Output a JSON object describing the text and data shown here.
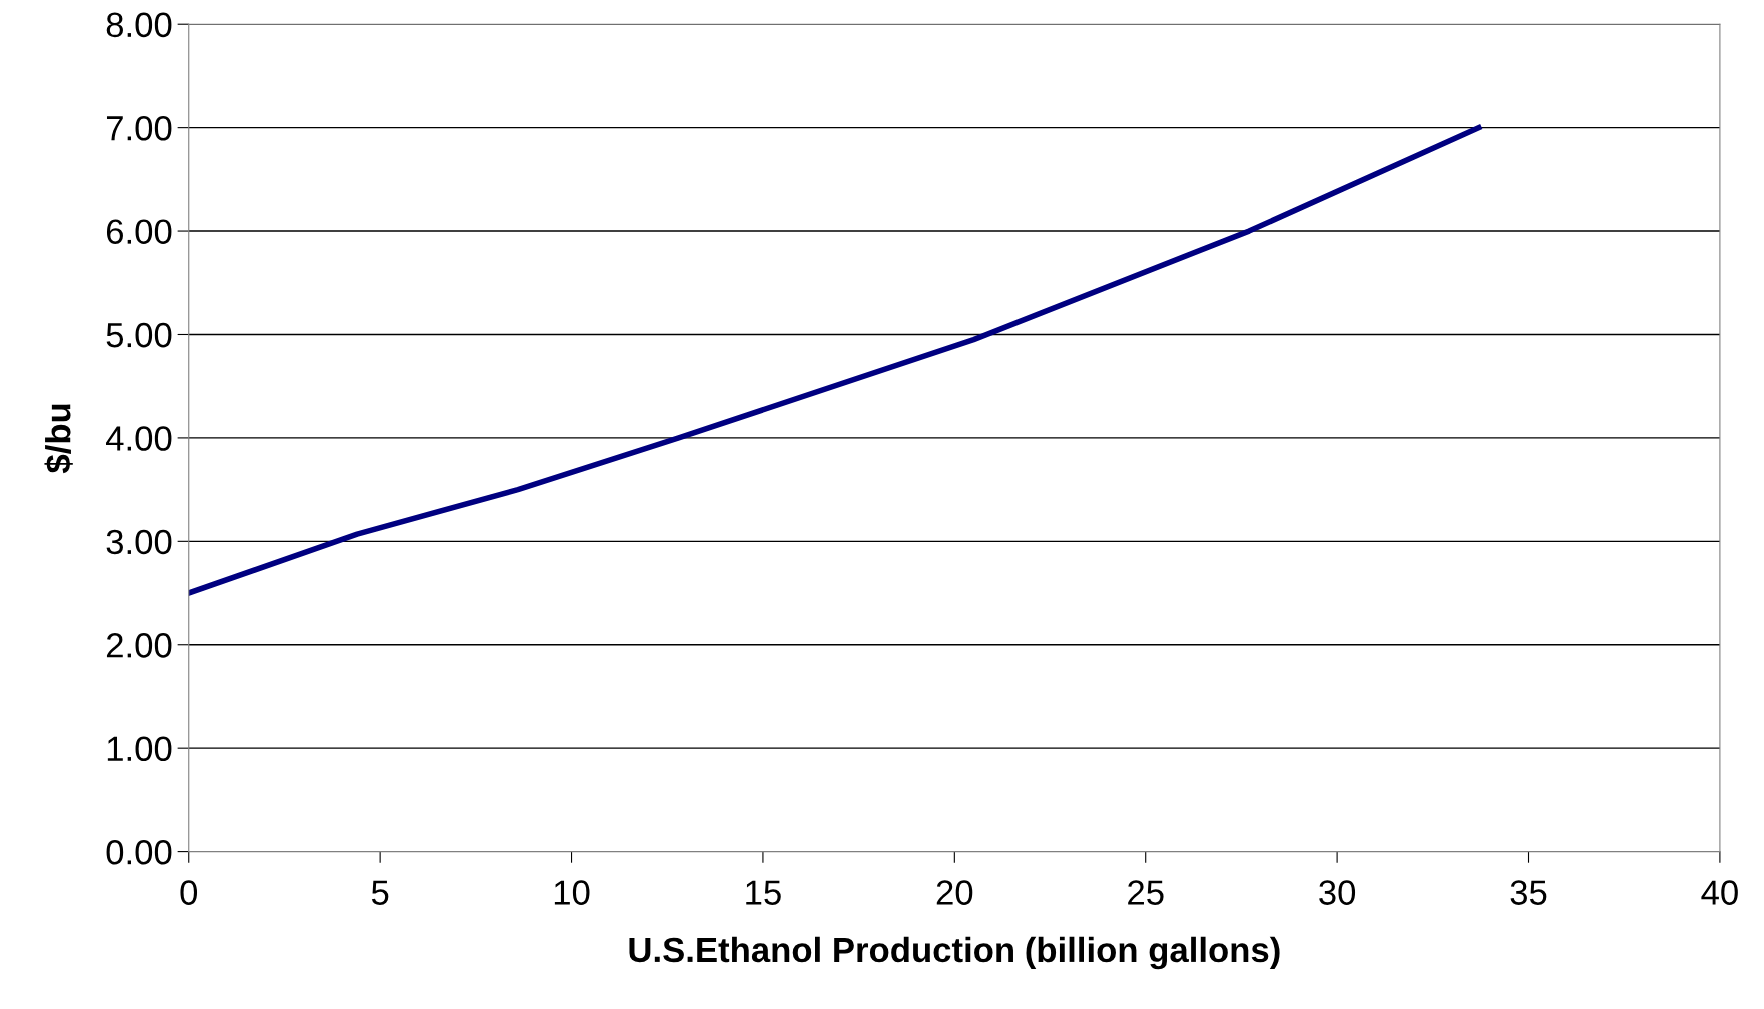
{
  "chart_data": {
    "type": "line",
    "xlabel": "U.S.Ethanol Production (billion gallons)",
    "ylabel": "$/bu",
    "series": [
      {
        "color": "#000080",
        "x": [
          0,
          4.4,
          8.6,
          12.8,
          20.5,
          27.7,
          33.7
        ],
        "values": [
          2.5,
          3.07,
          3.5,
          4.0,
          4.95,
          6.0,
          7.0
        ]
      }
    ],
    "xlim": [
      0,
      40
    ],
    "xticks": [
      0,
      5,
      10,
      15,
      20,
      25,
      30,
      35,
      40
    ],
    "ylim": [
      0,
      8
    ],
    "yticks": [
      {
        "value": 0,
        "label": "0.00"
      },
      {
        "value": 1,
        "label": "1.00"
      },
      {
        "value": 2,
        "label": "2.00"
      },
      {
        "value": 3,
        "label": "3.00"
      },
      {
        "value": 4,
        "label": "4.00"
      },
      {
        "value": 5,
        "label": "5.00"
      },
      {
        "value": 6,
        "label": "6.00"
      },
      {
        "value": 7,
        "label": "7.00"
      },
      {
        "value": 8,
        "label": "8.00"
      }
    ],
    "grid": "y",
    "marker": "none",
    "line_style": "solid",
    "legend": false
  }
}
